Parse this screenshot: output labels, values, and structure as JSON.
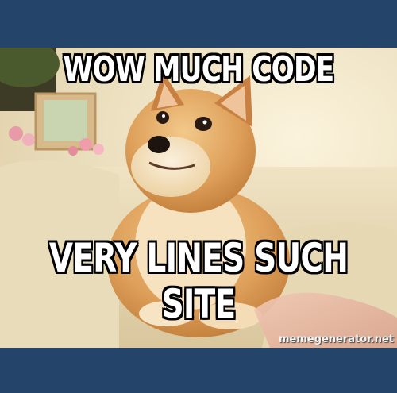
{
  "meme": {
    "top_text": "WOW MUCH CODE",
    "bottom_line_1": "VERY LINES SUCH",
    "bottom_line_2": "SITE",
    "watermark": "memegenerator.net"
  },
  "colors": {
    "frame_background": "#24446a",
    "caption_fill": "#ffffff",
    "caption_outline": "#000000"
  }
}
